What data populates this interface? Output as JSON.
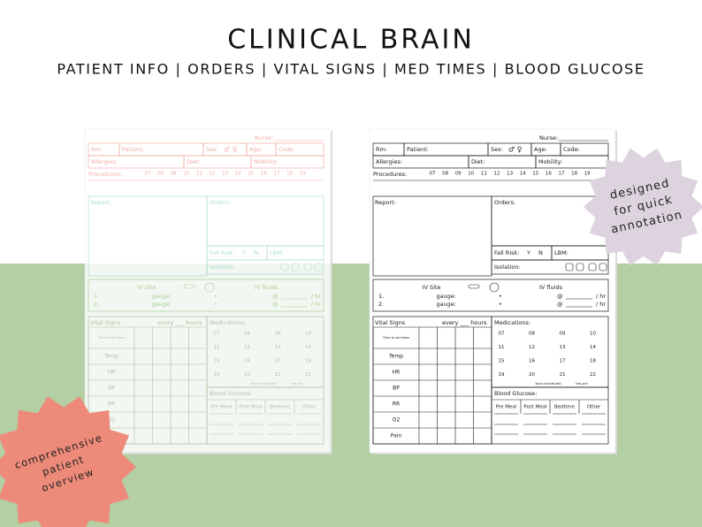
{
  "header": {
    "title": "CLINICAL BRAIN",
    "subtitle": "PATIENT INFO | ORDERS | VITAL SIGNS | MED TIMES | BLOOD GLUCOSE"
  },
  "badges": {
    "right": [
      "designed",
      "for quick",
      "annotation"
    ],
    "left": [
      "comprehensive",
      "patient",
      "overview"
    ]
  },
  "sheet": {
    "nurse": "Nurse:",
    "row1": [
      "Rm:",
      "Patient:",
      "Sex:",
      "Age:",
      "Code:"
    ],
    "sex_symbols": "♂ ♀",
    "row2": [
      "Allergies:",
      "Diet:",
      "Mobility:"
    ],
    "procedures": {
      "label": "Procedures:",
      "hours": [
        "07",
        "08",
        "09",
        "10",
        "11",
        "12",
        "13",
        "14",
        "15",
        "16",
        "17",
        "18",
        "19"
      ]
    },
    "report": "Report:",
    "orders": "Orders:",
    "fall_risk": {
      "label": "Fall Risk:",
      "yes": "Y",
      "no": "N"
    },
    "lbm": "LBM:",
    "isolation": "Isolation:",
    "iv_site": {
      "title": "IV Site",
      "lines": [
        "1.",
        "2."
      ],
      "gauge": "gauge:"
    },
    "iv_fluids": {
      "title": "IV fluids",
      "bullet": "•",
      "at": "@",
      "rate": "/ hr"
    },
    "vitals": {
      "title": "Vital Signs",
      "every": "every ___ hours",
      "rows": [
        "Time to be taken",
        "Temp",
        "HR",
        "BP",
        "RR",
        "O2",
        "Pain"
      ]
    },
    "medications": {
      "title": "Medications:",
      "times": [
        "07",
        "08",
        "09",
        "10",
        "11",
        "12",
        "13",
        "14",
        "15",
        "16",
        "17",
        "18",
        "19",
        "20",
        "21",
        "22"
      ],
      "legend": [
        "blue-scheduled",
        "red-prn"
      ]
    },
    "blood_glucose": {
      "title": "Blood Glucose:",
      "columns": [
        "Pre Meal",
        "Post Meal",
        "Bedtime",
        "Other"
      ]
    }
  }
}
